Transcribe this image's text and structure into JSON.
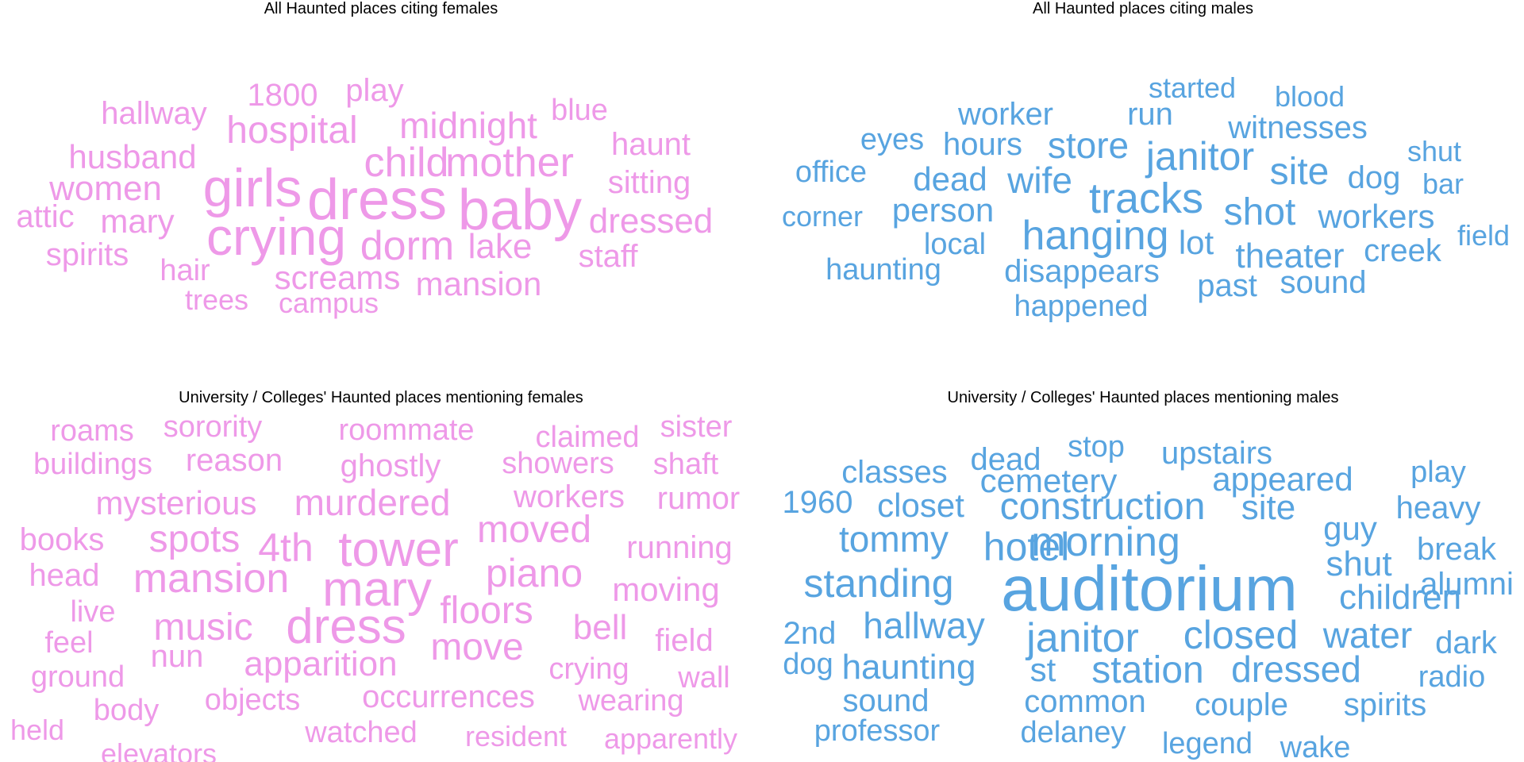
{
  "colors": {
    "female": "#EE99E8",
    "male": "#58A4E0"
  },
  "chart_data": [
    {
      "type": "wordcloud",
      "title": "All Haunted places citing females",
      "color": "#EE99E8",
      "words": [
        {
          "text": "baby",
          "weight": 72
        },
        {
          "text": "dress",
          "weight": 72
        },
        {
          "text": "girls",
          "weight": 68
        },
        {
          "text": "crying",
          "weight": 66
        },
        {
          "text": "child",
          "weight": 52
        },
        {
          "text": "mother",
          "weight": 52
        },
        {
          "text": "dorm",
          "weight": 52
        },
        {
          "text": "hospital",
          "weight": 48
        },
        {
          "text": "midnight",
          "weight": 46
        },
        {
          "text": "women",
          "weight": 44
        },
        {
          "text": "husband",
          "weight": 42
        },
        {
          "text": "dressed",
          "weight": 44
        },
        {
          "text": "lake",
          "weight": 44
        },
        {
          "text": "screams",
          "weight": 42
        },
        {
          "text": "mansion",
          "weight": 42
        },
        {
          "text": "mary",
          "weight": 42
        },
        {
          "text": "hallway",
          "weight": 40
        },
        {
          "text": "1800",
          "weight": 40
        },
        {
          "text": "play",
          "weight": 40
        },
        {
          "text": "blue",
          "weight": 38
        },
        {
          "text": "haunt",
          "weight": 40
        },
        {
          "text": "sitting",
          "weight": 40
        },
        {
          "text": "attic",
          "weight": 40
        },
        {
          "text": "spirits",
          "weight": 40
        },
        {
          "text": "hair",
          "weight": 38
        },
        {
          "text": "staff",
          "weight": 40
        },
        {
          "text": "trees",
          "weight": 36
        },
        {
          "text": "campus",
          "weight": 36
        }
      ]
    },
    {
      "type": "wordcloud",
      "title": "All Haunted places citing males",
      "color": "#58A4E0",
      "words": [
        {
          "text": "tracks",
          "weight": 54
        },
        {
          "text": "hanging",
          "weight": 52
        },
        {
          "text": "janitor",
          "weight": 50
        },
        {
          "text": "shot",
          "weight": 48
        },
        {
          "text": "site",
          "weight": 48
        },
        {
          "text": "wife",
          "weight": 46
        },
        {
          "text": "store",
          "weight": 46
        },
        {
          "text": "theater",
          "weight": 44
        },
        {
          "text": "workers",
          "weight": 42
        },
        {
          "text": "dead",
          "weight": 42
        },
        {
          "text": "person",
          "weight": 42
        },
        {
          "text": "hours",
          "weight": 40
        },
        {
          "text": "lot",
          "weight": 42
        },
        {
          "text": "dog",
          "weight": 40
        },
        {
          "text": "disappears",
          "weight": 40
        },
        {
          "text": "witnesses",
          "weight": 40
        },
        {
          "text": "worker",
          "weight": 40
        },
        {
          "text": "run",
          "weight": 40
        },
        {
          "text": "past",
          "weight": 40
        },
        {
          "text": "creek",
          "weight": 40
        },
        {
          "text": "sound",
          "weight": 40
        },
        {
          "text": "happened",
          "weight": 38
        },
        {
          "text": "local",
          "weight": 38
        },
        {
          "text": "haunting",
          "weight": 38
        },
        {
          "text": "office",
          "weight": 38
        },
        {
          "text": "eyes",
          "weight": 38
        },
        {
          "text": "corner",
          "weight": 36
        },
        {
          "text": "started",
          "weight": 36
        },
        {
          "text": "blood",
          "weight": 36
        },
        {
          "text": "shut",
          "weight": 36
        },
        {
          "text": "bar",
          "weight": 36
        },
        {
          "text": "field",
          "weight": 36
        }
      ]
    },
    {
      "type": "wordcloud",
      "title": "University / Colleges' Haunted places mentioning females",
      "color": "#EE99E8",
      "words": [
        {
          "text": "tower",
          "weight": 62
        },
        {
          "text": "mary",
          "weight": 62
        },
        {
          "text": "dress",
          "weight": 62
        },
        {
          "text": "mansion",
          "weight": 52
        },
        {
          "text": "piano",
          "weight": 50
        },
        {
          "text": "4th",
          "weight": 50
        },
        {
          "text": "spots",
          "weight": 48
        },
        {
          "text": "music",
          "weight": 48
        },
        {
          "text": "floors",
          "weight": 48
        },
        {
          "text": "moved",
          "weight": 48
        },
        {
          "text": "move",
          "weight": 48
        },
        {
          "text": "murdered",
          "weight": 46
        },
        {
          "text": "apparition",
          "weight": 44
        },
        {
          "text": "bell",
          "weight": 44
        },
        {
          "text": "mysterious",
          "weight": 42
        },
        {
          "text": "moving",
          "weight": 42
        },
        {
          "text": "running",
          "weight": 40
        },
        {
          "text": "head",
          "weight": 40
        },
        {
          "text": "books",
          "weight": 40
        },
        {
          "text": "ghostly",
          "weight": 40
        },
        {
          "text": "workers",
          "weight": 40
        },
        {
          "text": "occurrences",
          "weight": 40
        },
        {
          "text": "reason",
          "weight": 40
        },
        {
          "text": "rumor",
          "weight": 40
        },
        {
          "text": "field",
          "weight": 40
        },
        {
          "text": "nun",
          "weight": 40
        },
        {
          "text": "roommate",
          "weight": 38
        },
        {
          "text": "sorority",
          "weight": 38
        },
        {
          "text": "buildings",
          "weight": 38
        },
        {
          "text": "showers",
          "weight": 38
        },
        {
          "text": "shaft",
          "weight": 38
        },
        {
          "text": "roams",
          "weight": 38
        },
        {
          "text": "claimed",
          "weight": 38
        },
        {
          "text": "sister",
          "weight": 38
        },
        {
          "text": "live",
          "weight": 38
        },
        {
          "text": "feel",
          "weight": 38
        },
        {
          "text": "ground",
          "weight": 38
        },
        {
          "text": "crying",
          "weight": 38
        },
        {
          "text": "wall",
          "weight": 38
        },
        {
          "text": "objects",
          "weight": 38
        },
        {
          "text": "wearing",
          "weight": 38
        },
        {
          "text": "body",
          "weight": 38
        },
        {
          "text": "held",
          "weight": 36
        },
        {
          "text": "watched",
          "weight": 38
        },
        {
          "text": "resident",
          "weight": 36
        },
        {
          "text": "apparently",
          "weight": 36
        },
        {
          "text": "elevators",
          "weight": 36
        }
      ]
    },
    {
      "type": "wordcloud",
      "title": "University / Colleges' Haunted places mentioning males",
      "color": "#58A4E0",
      "words": [
        {
          "text": "auditorium",
          "weight": 80
        },
        {
          "text": "morning",
          "weight": 52
        },
        {
          "text": "janitor",
          "weight": 52
        },
        {
          "text": "standing",
          "weight": 50
        },
        {
          "text": "hotel",
          "weight": 50
        },
        {
          "text": "closed",
          "weight": 50
        },
        {
          "text": "construction",
          "weight": 48
        },
        {
          "text": "station",
          "weight": 48
        },
        {
          "text": "hallway",
          "weight": 46
        },
        {
          "text": "water",
          "weight": 46
        },
        {
          "text": "tommy",
          "weight": 46
        },
        {
          "text": "dressed",
          "weight": 46
        },
        {
          "text": "children",
          "weight": 44
        },
        {
          "text": "haunting",
          "weight": 44
        },
        {
          "text": "site",
          "weight": 44
        },
        {
          "text": "shut",
          "weight": 44
        },
        {
          "text": "closet",
          "weight": 42
        },
        {
          "text": "guy",
          "weight": 42
        },
        {
          "text": "cemetery",
          "weight": 42
        },
        {
          "text": "appeared",
          "weight": 42
        },
        {
          "text": "st",
          "weight": 42
        },
        {
          "text": "heavy",
          "weight": 40
        },
        {
          "text": "1960",
          "weight": 40
        },
        {
          "text": "upstairs",
          "weight": 40
        },
        {
          "text": "break",
          "weight": 40
        },
        {
          "text": "2nd",
          "weight": 40
        },
        {
          "text": "dark",
          "weight": 40
        },
        {
          "text": "classes",
          "weight": 40
        },
        {
          "text": "dead",
          "weight": 40
        },
        {
          "text": "stop",
          "weight": 38
        },
        {
          "text": "alumni",
          "weight": 40
        },
        {
          "text": "common",
          "weight": 40
        },
        {
          "text": "couple",
          "weight": 40
        },
        {
          "text": "sound",
          "weight": 40
        },
        {
          "text": "spirits",
          "weight": 40
        },
        {
          "text": "radio",
          "weight": 38
        },
        {
          "text": "dog",
          "weight": 38
        },
        {
          "text": "play",
          "weight": 38
        },
        {
          "text": "professor",
          "weight": 38
        },
        {
          "text": "delaney",
          "weight": 38
        },
        {
          "text": "legend",
          "weight": 38
        },
        {
          "text": "wake",
          "weight": 38
        }
      ]
    }
  ]
}
